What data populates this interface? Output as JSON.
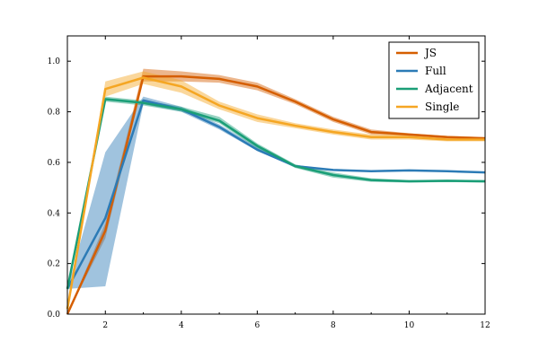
{
  "chart_data": {
    "type": "line",
    "title": "",
    "xlabel": "",
    "ylabel": "",
    "xlim": [
      1,
      12
    ],
    "ylim": [
      0.0,
      1.1
    ],
    "xticks": [
      2,
      4,
      6,
      8,
      10,
      12
    ],
    "yticks": [
      0.0,
      0.2,
      0.4,
      0.6,
      0.8,
      1.0
    ],
    "xtick_labels": [
      "2",
      "4",
      "6",
      "8",
      "10",
      "12"
    ],
    "ytick_labels": [
      "0.0",
      "0.2",
      "0.4",
      "0.6",
      "0.8",
      "1.0"
    ],
    "grid": false,
    "legend_position": "top-right",
    "x": [
      1,
      2,
      3,
      4,
      5,
      6,
      7,
      8,
      9,
      10,
      11,
      12
    ],
    "series": [
      {
        "name": "JS",
        "color": "#d55e00",
        "values": [
          0.0,
          0.33,
          0.94,
          0.94,
          0.93,
          0.9,
          0.84,
          0.77,
          0.72,
          0.71,
          0.7,
          0.695
        ],
        "lower": [
          0.0,
          0.3,
          0.92,
          0.92,
          0.915,
          0.885,
          0.83,
          0.76,
          0.71,
          0.705,
          0.695,
          0.69
        ],
        "upper": [
          0.0,
          0.36,
          0.97,
          0.96,
          0.945,
          0.915,
          0.85,
          0.78,
          0.73,
          0.715,
          0.705,
          0.7
        ]
      },
      {
        "name": "Full",
        "color": "#2c7bb6",
        "values": [
          0.1,
          0.38,
          0.845,
          0.81,
          0.74,
          0.65,
          0.585,
          0.57,
          0.565,
          0.568,
          0.565,
          0.56
        ],
        "lower": [
          0.1,
          0.11,
          0.83,
          0.8,
          0.73,
          0.645,
          0.58,
          0.568,
          0.562,
          0.566,
          0.562,
          0.558
        ],
        "upper": [
          0.1,
          0.64,
          0.86,
          0.82,
          0.75,
          0.66,
          0.59,
          0.572,
          0.568,
          0.57,
          0.568,
          0.562
        ]
      },
      {
        "name": "Adjacent",
        "color": "#1a9e77",
        "values": [
          0.1,
          0.85,
          0.835,
          0.81,
          0.765,
          0.665,
          0.585,
          0.55,
          0.53,
          0.525,
          0.527,
          0.525
        ],
        "lower": [
          0.1,
          0.84,
          0.825,
          0.8,
          0.755,
          0.655,
          0.578,
          0.54,
          0.523,
          0.52,
          0.522,
          0.52
        ],
        "upper": [
          0.1,
          0.86,
          0.845,
          0.82,
          0.78,
          0.675,
          0.592,
          0.56,
          0.537,
          0.53,
          0.532,
          0.53
        ]
      },
      {
        "name": "Single",
        "color": "#f5a623",
        "values": [
          0.02,
          0.89,
          0.935,
          0.9,
          0.825,
          0.775,
          0.745,
          0.72,
          0.7,
          0.7,
          0.69,
          0.69
        ],
        "lower": [
          0.02,
          0.86,
          0.91,
          0.875,
          0.81,
          0.76,
          0.735,
          0.71,
          0.69,
          0.69,
          0.683,
          0.683
        ],
        "upper": [
          0.02,
          0.92,
          0.96,
          0.925,
          0.84,
          0.79,
          0.755,
          0.73,
          0.71,
          0.71,
          0.697,
          0.697
        ]
      }
    ]
  }
}
